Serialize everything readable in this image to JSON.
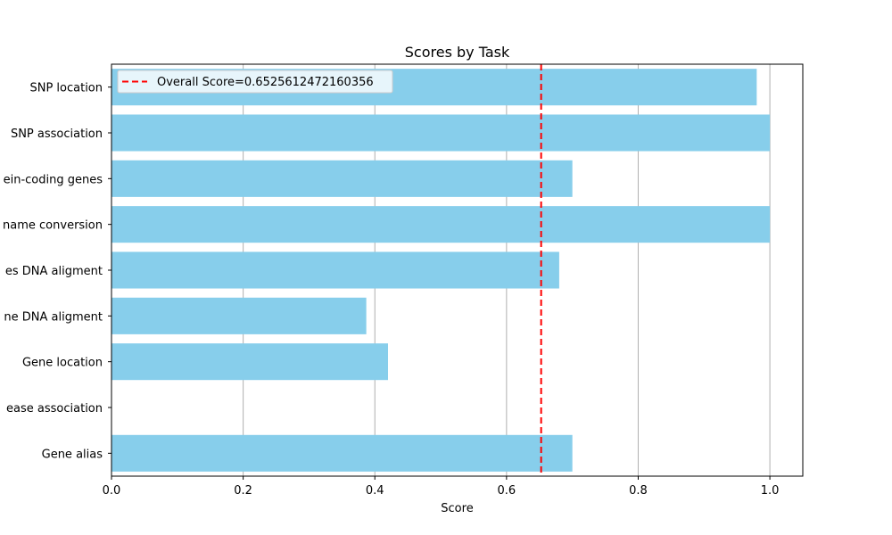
{
  "chart_data": {
    "type": "bar",
    "orientation": "horizontal",
    "title": "Scores by Task",
    "xlabel": "Score",
    "ylabel": "",
    "xlim": [
      0,
      1.05
    ],
    "xticks": [
      "0.0",
      "0.2",
      "0.4",
      "0.6",
      "0.8",
      "1.0"
    ],
    "categories": [
      "Gene alias",
      "ease association",
      "Gene location",
      "ne DNA aligment",
      "es DNA aligment",
      "name conversion",
      "ein-coding genes",
      "SNP association",
      "SNP location"
    ],
    "values": [
      0.7,
      0.0,
      0.42,
      0.387,
      0.68,
      1.0,
      0.7,
      1.0,
      0.98
    ],
    "bar_color": "#87CEEB",
    "grid": "vertical",
    "reference_line": {
      "label": "Overall Score=0.6525612472160356",
      "value": 0.6525612472160356,
      "color": "#FF0000",
      "style": "dashed"
    },
    "legend_position": "top-left"
  }
}
